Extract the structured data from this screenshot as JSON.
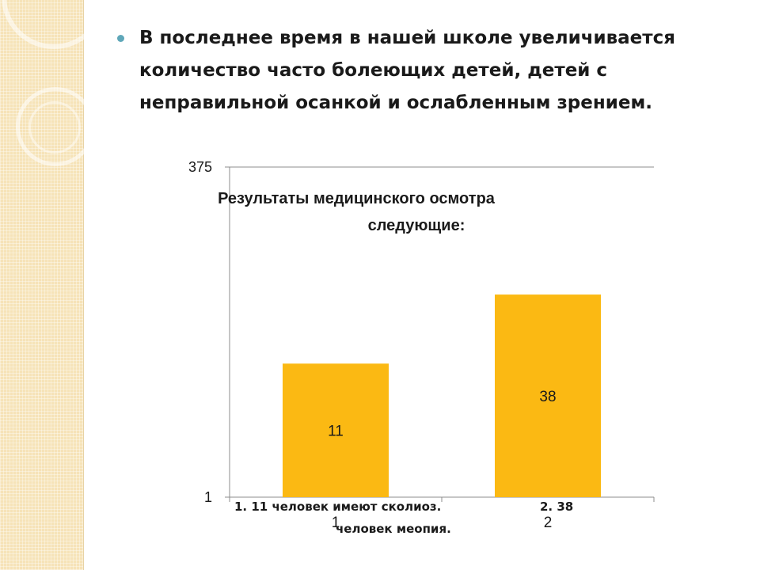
{
  "slide": {
    "bullet_text": "В последнее время в нашей школе увеличивается количество часто болеющих детей, детей с неправильной осанкой и ослабленным зрением."
  },
  "colors": {
    "bar": "#fbb913",
    "bullet": "#5fa7b9",
    "panel": "#f6e3b8"
  },
  "chart_data": {
    "type": "bar",
    "title_line1": "Результаты медицинского осмотра",
    "title_line2": "следующие:",
    "categories": [
      "1",
      "2"
    ],
    "values": [
      11,
      38
    ],
    "data_labels": [
      "11",
      "38"
    ],
    "y_ticks": [
      "375",
      "1"
    ],
    "ylim": [
      1,
      375
    ],
    "scale": "log",
    "grid": true,
    "legend": "none"
  },
  "caption": {
    "part1": "1.  11 человек имеют сколиоз.",
    "part2": "2. 38",
    "part3": "человек меопия."
  }
}
